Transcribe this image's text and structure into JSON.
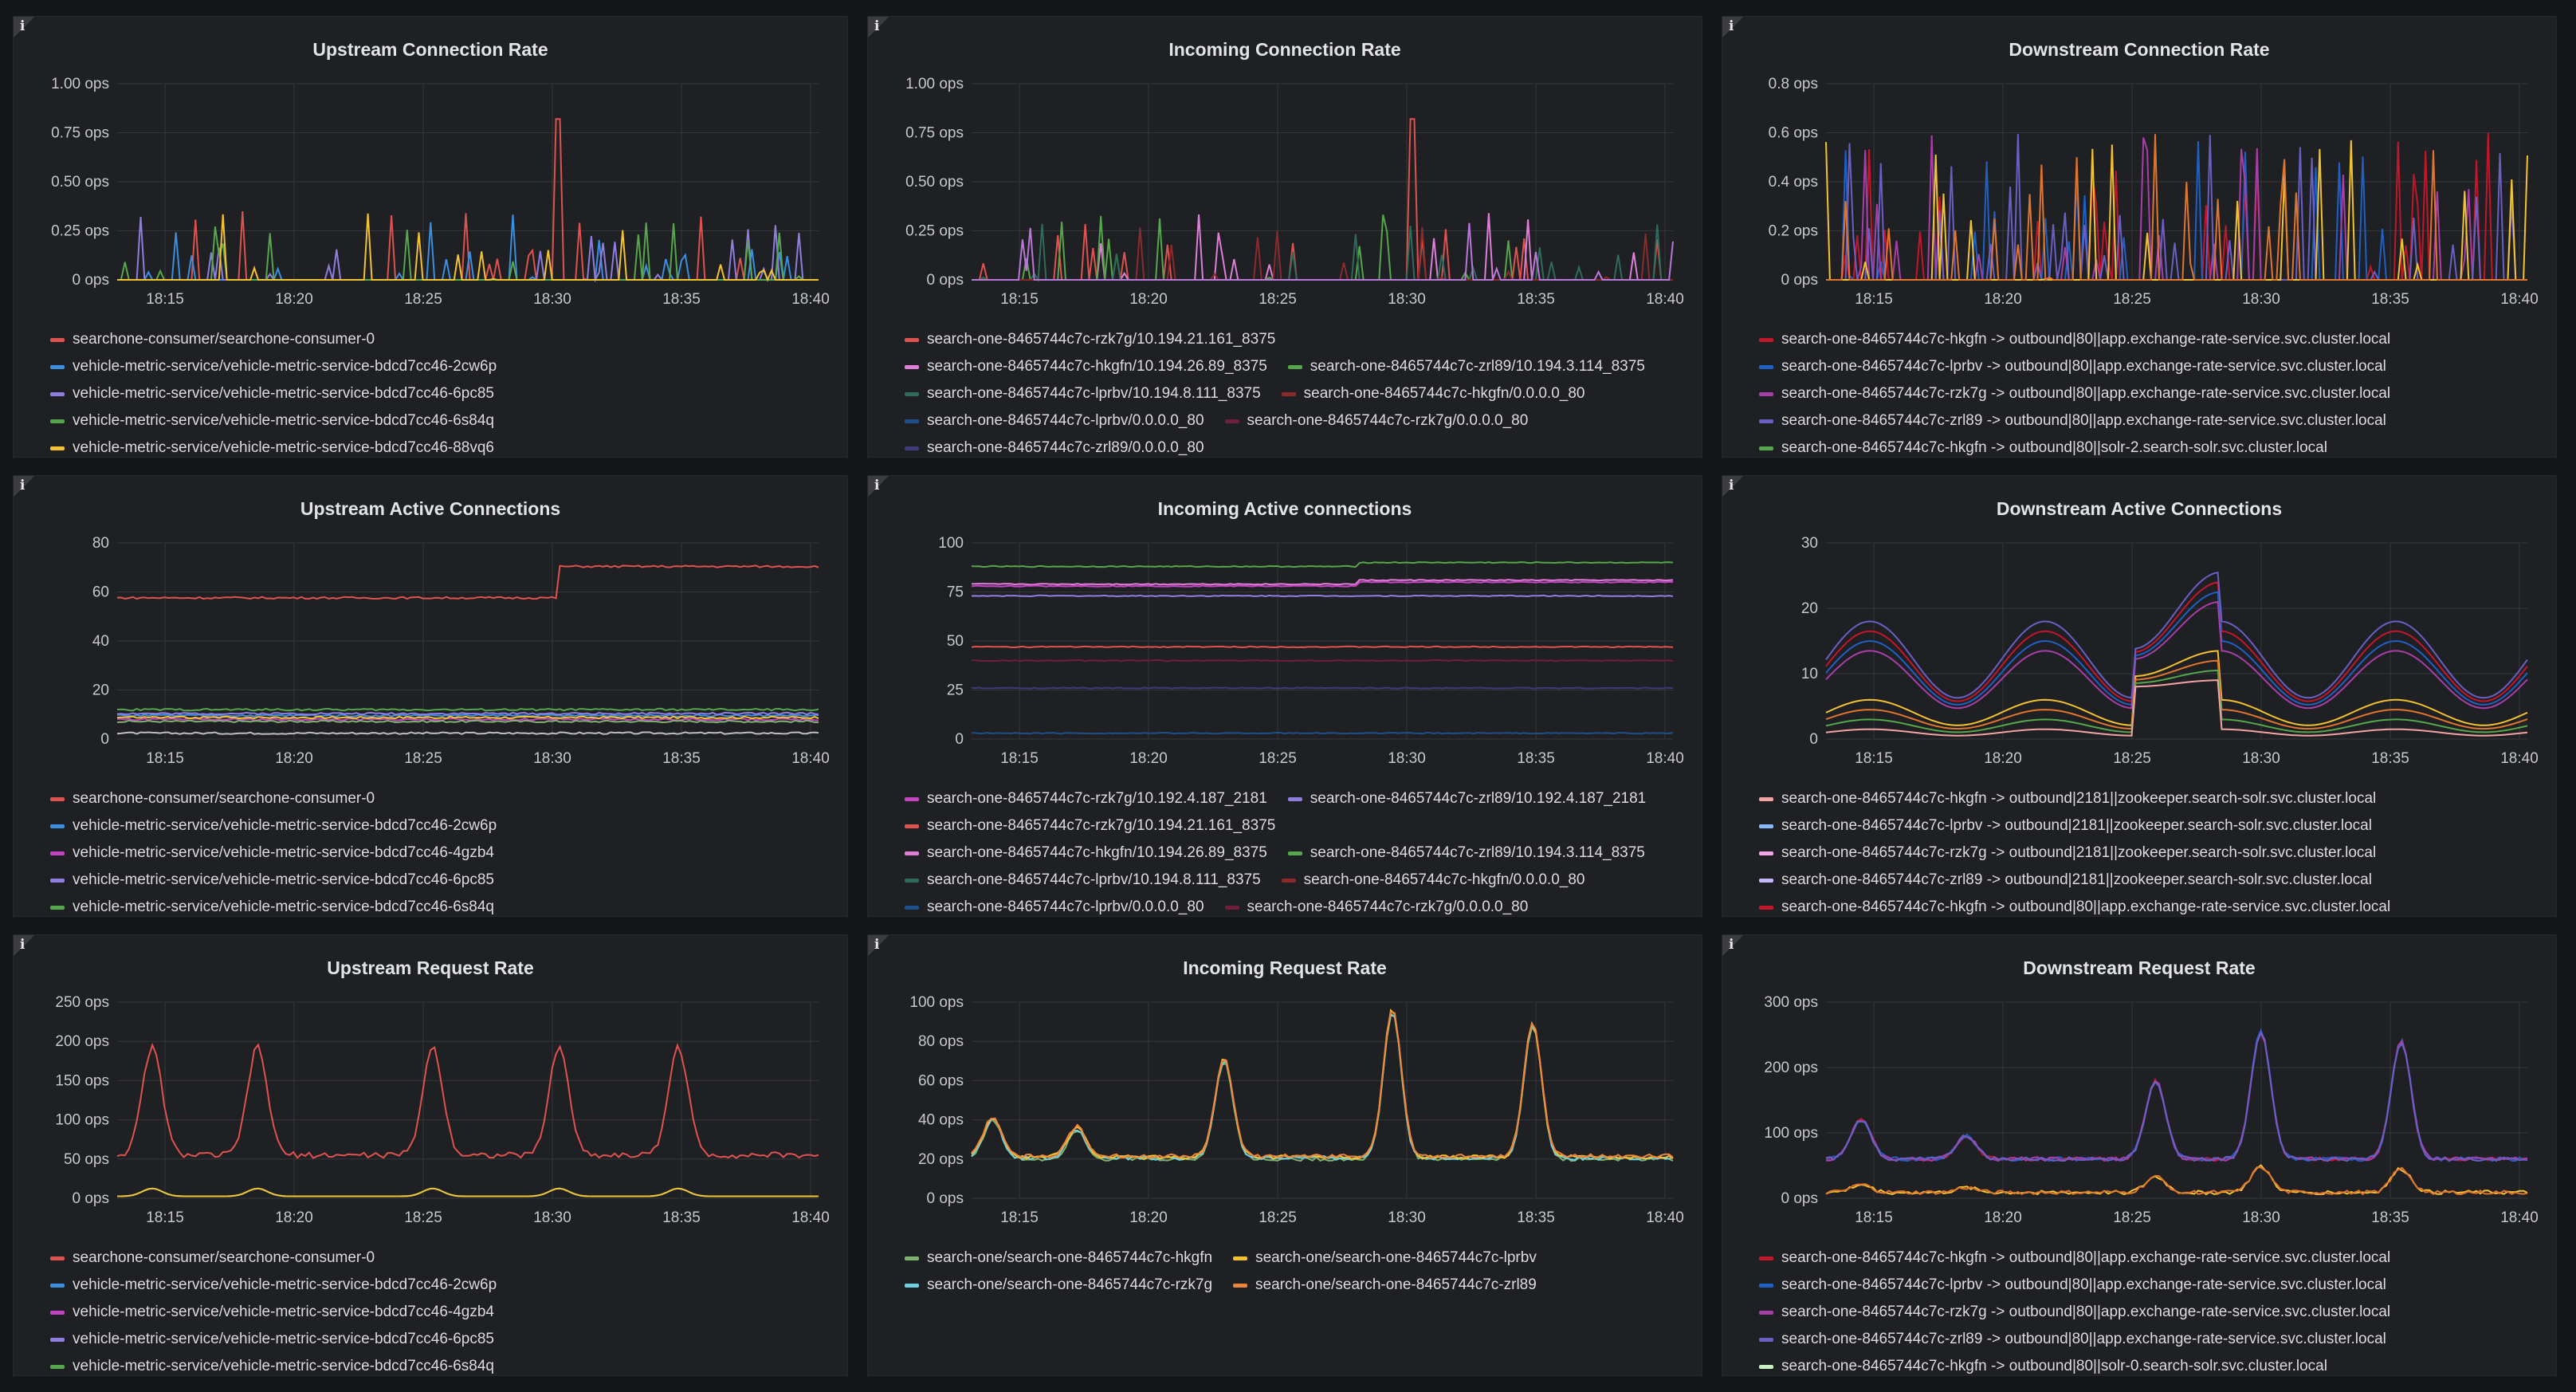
{
  "time_ticks": [
    "18:15",
    "18:20",
    "18:25",
    "18:30",
    "18:35",
    "18:40"
  ],
  "info_icon_label": "i",
  "panels": [
    {
      "title": "Upstream Connection Rate",
      "y_ticks": [
        "0 ops",
        "0.25 ops",
        "0.50 ops",
        "0.75 ops",
        "1.00 ops"
      ],
      "legend_rows": [
        [
          {
            "label": "searchone-consumer/searchone-consumer-0",
            "color": "#e0524f"
          }
        ],
        [
          {
            "label": "vehicle-metric-service/vehicle-metric-service-bdcd7cc46-2cw6p",
            "color": "#3a8fe0"
          }
        ],
        [
          {
            "label": "vehicle-metric-service/vehicle-metric-service-bdcd7cc46-6pc85",
            "color": "#8f7ee0"
          }
        ],
        [
          {
            "label": "vehicle-metric-service/vehicle-metric-service-bdcd7cc46-6s84q",
            "color": "#56a64b"
          }
        ],
        [
          {
            "label": "vehicle-metric-service/vehicle-metric-service-bdcd7cc46-88vq6",
            "color": "#f2c230"
          }
        ]
      ],
      "series_colors": [
        "#e0524f",
        "#3a8fe0",
        "#8f7ee0",
        "#56a64b",
        "#f2c230"
      ]
    },
    {
      "title": "Incoming Connection Rate",
      "y_ticks": [
        "0 ops",
        "0.25 ops",
        "0.50 ops",
        "0.75 ops",
        "1.00 ops"
      ],
      "legend_rows": [
        [
          {
            "label": "search-one-8465744c7c-rzk7g/10.194.21.161_8375",
            "color": "#e0524f"
          }
        ],
        [
          {
            "label": "search-one-8465744c7c-hkgfn/10.194.26.89_8375",
            "color": "#e07ed8"
          },
          {
            "label": "search-one-8465744c7c-zrl89/10.194.3.114_8375",
            "color": "#56a64b"
          }
        ],
        [
          {
            "label": "search-one-8465744c7c-lprbv/10.194.8.111_8375",
            "color": "#2f6b5a"
          },
          {
            "label": "search-one-8465744c7c-hkgfn/0.0.0.0_80",
            "color": "#8b2a2a"
          }
        ],
        [
          {
            "label": "search-one-8465744c7c-lprbv/0.0.0.0_80",
            "color": "#1f4f8a"
          },
          {
            "label": "search-one-8465744c7c-rzk7g/0.0.0.0_80",
            "color": "#6e1f3a"
          }
        ],
        [
          {
            "label": "search-one-8465744c7c-zrl89/0.0.0.0_80",
            "color": "#3f3a7a"
          }
        ]
      ],
      "series_colors": [
        "#e0524f",
        "#e07ed8",
        "#56a64b",
        "#2f6b5a",
        "#8b2a2a",
        "#b877d9"
      ]
    },
    {
      "title": "Downstream Connection Rate",
      "y_ticks": [
        "0 ops",
        "0.2 ops",
        "0.4 ops",
        "0.6 ops",
        "0.8 ops"
      ],
      "legend_rows": [
        [
          {
            "label": "search-one-8465744c7c-hkgfn -> outbound|80||app.exchange-rate-service.svc.cluster.local",
            "color": "#c4162a"
          }
        ],
        [
          {
            "label": "search-one-8465744c7c-lprbv -> outbound|80||app.exchange-rate-service.svc.cluster.local",
            "color": "#1f60c4"
          }
        ],
        [
          {
            "label": "search-one-8465744c7c-rzk7g -> outbound|80||app.exchange-rate-service.svc.cluster.local",
            "color": "#a83ea8"
          }
        ],
        [
          {
            "label": "search-one-8465744c7c-zrl89 -> outbound|80||app.exchange-rate-service.svc.cluster.local",
            "color": "#6a5fc4"
          }
        ],
        [
          {
            "label": "search-one-8465744c7c-hkgfn -> outbound|80||solr-2.search-solr.svc.cluster.local",
            "color": "#56a64b"
          }
        ]
      ],
      "series_colors": [
        "#c4162a",
        "#1f60c4",
        "#a83ea8",
        "#6a5fc4",
        "#f2c230",
        "#e0752d"
      ]
    },
    {
      "title": "Upstream Active Connections",
      "y_ticks": [
        "0",
        "20",
        "40",
        "60",
        "80"
      ],
      "legend_rows": [
        [
          {
            "label": "searchone-consumer/searchone-consumer-0",
            "color": "#e0524f"
          }
        ],
        [
          {
            "label": "vehicle-metric-service/vehicle-metric-service-bdcd7cc46-2cw6p",
            "color": "#3a8fe0"
          }
        ],
        [
          {
            "label": "vehicle-metric-service/vehicle-metric-service-bdcd7cc46-4gzb4",
            "color": "#c444c4"
          }
        ],
        [
          {
            "label": "vehicle-metric-service/vehicle-metric-service-bdcd7cc46-6pc85",
            "color": "#8f7ee0"
          }
        ],
        [
          {
            "label": "vehicle-metric-service/vehicle-metric-service-bdcd7cc46-6s84q",
            "color": "#56a64b"
          }
        ]
      ],
      "series_colors": [
        "#e0524f",
        "#3a8fe0",
        "#c444c4",
        "#8f7ee0",
        "#56a64b",
        "#f2c230",
        "#7eb26d",
        "#bdbdbd"
      ]
    },
    {
      "title": "Incoming Active connections",
      "y_ticks": [
        "0",
        "25",
        "50",
        "75",
        "100"
      ],
      "legend_rows": [
        [
          {
            "label": "search-one-8465744c7c-rzk7g/10.192.4.187_2181",
            "color": "#c444c4"
          },
          {
            "label": "search-one-8465744c7c-zrl89/10.192.4.187_2181",
            "color": "#8f7ee0"
          }
        ],
        [
          {
            "label": "search-one-8465744c7c-rzk7g/10.194.21.161_8375",
            "color": "#e0524f"
          }
        ],
        [
          {
            "label": "search-one-8465744c7c-hkgfn/10.194.26.89_8375",
            "color": "#e07ed8"
          },
          {
            "label": "search-one-8465744c7c-zrl89/10.194.3.114_8375",
            "color": "#56a64b"
          }
        ],
        [
          {
            "label": "search-one-8465744c7c-lprbv/10.194.8.111_8375",
            "color": "#2f6b5a"
          },
          {
            "label": "search-one-8465744c7c-hkgfn/0.0.0.0_80",
            "color": "#8b2a2a"
          }
        ],
        [
          {
            "label": "search-one-8465744c7c-lprbv/0.0.0.0_80",
            "color": "#1f4f8a"
          },
          {
            "label": "search-one-8465744c7c-rzk7g/0.0.0.0_80",
            "color": "#6e1f3a"
          }
        ]
      ],
      "series_colors": [
        "#56a64b",
        "#e07ed8",
        "#c444c4",
        "#8f7ee0",
        "#e0524f",
        "#6e1f3a",
        "#3f3a7a",
        "#1f4f8a"
      ]
    },
    {
      "title": "Downstream Active Connections",
      "y_ticks": [
        "0",
        "10",
        "20",
        "30"
      ],
      "legend_rows": [
        [
          {
            "label": "search-one-8465744c7c-hkgfn -> outbound|2181||zookeeper.search-solr.svc.cluster.local",
            "color": "#f2a4a4"
          }
        ],
        [
          {
            "label": "search-one-8465744c7c-lprbv -> outbound|2181||zookeeper.search-solr.svc.cluster.local",
            "color": "#8ab8ff"
          }
        ],
        [
          {
            "label": "search-one-8465744c7c-rzk7g -> outbound|2181||zookeeper.search-solr.svc.cluster.local",
            "color": "#f5a3e8"
          }
        ],
        [
          {
            "label": "search-one-8465744c7c-zrl89 -> outbound|2181||zookeeper.search-solr.svc.cluster.local",
            "color": "#c4b8ff"
          }
        ],
        [
          {
            "label": "search-one-8465744c7c-hkgfn -> outbound|80||app.exchange-rate-service.svc.cluster.local",
            "color": "#c4162a"
          }
        ]
      ],
      "series_colors": [
        "#c4162a",
        "#1f60c4",
        "#a83ea8",
        "#6a5fc4",
        "#f2c230",
        "#e0752d",
        "#56a64b",
        "#f2a4a4"
      ]
    },
    {
      "title": "Upstream Request Rate",
      "y_ticks": [
        "0 ops",
        "50 ops",
        "100 ops",
        "150 ops",
        "200 ops",
        "250 ops"
      ],
      "legend_rows": [
        [
          {
            "label": "searchone-consumer/searchone-consumer-0",
            "color": "#e0524f"
          }
        ],
        [
          {
            "label": "vehicle-metric-service/vehicle-metric-service-bdcd7cc46-2cw6p",
            "color": "#3a8fe0"
          }
        ],
        [
          {
            "label": "vehicle-metric-service/vehicle-metric-service-bdcd7cc46-4gzb4",
            "color": "#c444c4"
          }
        ],
        [
          {
            "label": "vehicle-metric-service/vehicle-metric-service-bdcd7cc46-6pc85",
            "color": "#8f7ee0"
          }
        ],
        [
          {
            "label": "vehicle-metric-service/vehicle-metric-service-bdcd7cc46-6s84q",
            "color": "#56a64b"
          }
        ]
      ],
      "series_colors": [
        "#e0524f",
        "#56a64b",
        "#3a8fe0",
        "#f2c230"
      ]
    },
    {
      "title": "Incoming Request Rate",
      "y_ticks": [
        "0 ops",
        "20 ops",
        "40 ops",
        "60 ops",
        "80 ops",
        "100 ops"
      ],
      "legend_rows": [
        [
          {
            "label": "search-one/search-one-8465744c7c-hkgfn",
            "color": "#7eb26d"
          },
          {
            "label": "search-one/search-one-8465744c7c-lprbv",
            "color": "#f2c230"
          }
        ],
        [
          {
            "label": "search-one/search-one-8465744c7c-rzk7g",
            "color": "#6ed0e0"
          },
          {
            "label": "search-one/search-one-8465744c7c-zrl89",
            "color": "#ef843c"
          }
        ]
      ],
      "series_colors": [
        "#7eb26d",
        "#6ed0e0",
        "#f2c230",
        "#ef843c"
      ]
    },
    {
      "title": "Downstream Request Rate",
      "y_ticks": [
        "0 ops",
        "100 ops",
        "200 ops",
        "300 ops"
      ],
      "legend_rows": [
        [
          {
            "label": "search-one-8465744c7c-hkgfn -> outbound|80||app.exchange-rate-service.svc.cluster.local",
            "color": "#c4162a"
          }
        ],
        [
          {
            "label": "search-one-8465744c7c-lprbv -> outbound|80||app.exchange-rate-service.svc.cluster.local",
            "color": "#1f60c4"
          }
        ],
        [
          {
            "label": "search-one-8465744c7c-rzk7g -> outbound|80||app.exchange-rate-service.svc.cluster.local",
            "color": "#a83ea8"
          }
        ],
        [
          {
            "label": "search-one-8465744c7c-zrl89 -> outbound|80||app.exchange-rate-service.svc.cluster.local",
            "color": "#6a5fc4"
          }
        ],
        [
          {
            "label": "search-one-8465744c7c-hkgfn -> outbound|80||solr-0.search-solr.svc.cluster.local",
            "color": "#c8f2c2"
          }
        ]
      ],
      "series_colors": [
        "#c4162a",
        "#1f60c4",
        "#a83ea8",
        "#6a5fc4",
        "#f2c230",
        "#e0752d"
      ]
    }
  ]
}
